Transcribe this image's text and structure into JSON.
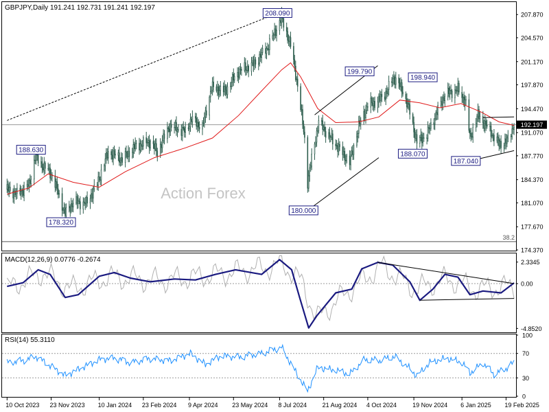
{
  "chart_data": {
    "type": "candlestick",
    "symbol_header": "GBPJPY,Daily  191.241 192.731 191.241 192.197",
    "watermark": "Action Forex",
    "current_price_label": "192.197",
    "current_price": 192.197,
    "price_axis": {
      "ylim": [
        174.37,
        209.55
      ],
      "ticks": [
        "207.870",
        "204.570",
        "201.170",
        "197.870",
        "194.470",
        "191.070",
        "187.770",
        "184.370",
        "181.070",
        "177.670",
        "174.370"
      ]
    },
    "fib_label": "38.2",
    "fib_level": 175.55,
    "price_labels": [
      {
        "text": "208.090",
        "x": "2024-07-10",
        "y": 208.09
      },
      {
        "text": "199.790",
        "x": "2024-09-30",
        "y": 199.79
      },
      {
        "text": "198.940",
        "x": "2024-12-02",
        "y": 198.94
      },
      {
        "text": "188.630",
        "x": "2023-11-07",
        "y": 188.63
      },
      {
        "text": "188.070",
        "x": "2024-11-22",
        "y": 188.07
      },
      {
        "text": "187.040",
        "x": "2025-01-14",
        "y": 187.04
      },
      {
        "text": "178.320",
        "x": "2023-12-07",
        "y": 178.32
      },
      {
        "text": "180.000",
        "x": "2024-08-05",
        "y": 180.0
      }
    ],
    "trendlines": [
      {
        "style": "dotted",
        "from": {
          "x": "2023-10-10",
          "y": 192.8
        },
        "to": {
          "x": "2024-07-10",
          "y": 208.3
        }
      },
      {
        "style": "solid",
        "from": {
          "x": "2024-08-05",
          "y": 180.0
        },
        "to": {
          "x": "2024-10-15",
          "y": 187.5
        }
      },
      {
        "style": "solid",
        "from": {
          "x": "2024-08-12",
          "y": 193.6
        },
        "to": {
          "x": "2024-10-14",
          "y": 200.6
        }
      },
      {
        "style": "solid",
        "from": {
          "x": "2025-01-14",
          "y": 187.04
        },
        "to": {
          "x": "2025-02-27",
          "y": 188.5
        }
      },
      {
        "style": "solid",
        "from": {
          "x": "2025-01-27",
          "y": 193.2
        },
        "to": {
          "x": "2025-02-27",
          "y": 193.3
        }
      }
    ],
    "price_path": [
      {
        "x": "2023-10-10",
        "y": 183.0
      },
      {
        "x": "2023-10-20",
        "y": 182.3
      },
      {
        "x": "2023-11-01",
        "y": 183.6
      },
      {
        "x": "2023-11-07",
        "y": 187.6
      },
      {
        "x": "2023-11-14",
        "y": 186.5
      },
      {
        "x": "2023-11-24",
        "y": 185.0
      },
      {
        "x": "2023-12-07",
        "y": 179.5
      },
      {
        "x": "2023-12-15",
        "y": 181.2
      },
      {
        "x": "2023-12-28",
        "y": 181.0
      },
      {
        "x": "2024-01-08",
        "y": 183.8
      },
      {
        "x": "2024-01-19",
        "y": 188.3
      },
      {
        "x": "2024-02-02",
        "y": 187.3
      },
      {
        "x": "2024-02-16",
        "y": 189.2
      },
      {
        "x": "2024-03-01",
        "y": 189.8
      },
      {
        "x": "2024-03-08",
        "y": 188.3
      },
      {
        "x": "2024-03-20",
        "y": 192.0
      },
      {
        "x": "2024-04-05",
        "y": 191.2
      },
      {
        "x": "2024-04-11",
        "y": 193.0
      },
      {
        "x": "2024-04-22",
        "y": 191.8
      },
      {
        "x": "2024-05-01",
        "y": 197.5
      },
      {
        "x": "2024-05-15",
        "y": 197.0
      },
      {
        "x": "2024-05-28",
        "y": 199.8
      },
      {
        "x": "2024-06-12",
        "y": 200.8
      },
      {
        "x": "2024-06-26",
        "y": 203.2
      },
      {
        "x": "2024-07-10",
        "y": 207.4
      },
      {
        "x": "2024-07-19",
        "y": 203.5
      },
      {
        "x": "2024-07-26",
        "y": 197.8
      },
      {
        "x": "2024-08-02",
        "y": 190.2
      },
      {
        "x": "2024-08-05",
        "y": 184.0
      },
      {
        "x": "2024-08-09",
        "y": 187.3
      },
      {
        "x": "2024-08-16",
        "y": 192.6
      },
      {
        "x": "2024-08-23",
        "y": 191.2
      },
      {
        "x": "2024-09-02",
        "y": 189.4
      },
      {
        "x": "2024-09-16",
        "y": 186.8
      },
      {
        "x": "2024-09-25",
        "y": 192.0
      },
      {
        "x": "2024-10-04",
        "y": 195.0
      },
      {
        "x": "2024-10-14",
        "y": 195.5
      },
      {
        "x": "2024-10-23",
        "y": 196.9
      },
      {
        "x": "2024-10-30",
        "y": 199.0
      },
      {
        "x": "2024-11-08",
        "y": 197.0
      },
      {
        "x": "2024-11-15",
        "y": 194.0
      },
      {
        "x": "2024-11-22",
        "y": 189.7
      },
      {
        "x": "2024-12-02",
        "y": 190.8
      },
      {
        "x": "2024-12-10",
        "y": 193.3
      },
      {
        "x": "2024-12-20",
        "y": 196.5
      },
      {
        "x": "2025-01-02",
        "y": 197.2
      },
      {
        "x": "2025-01-10",
        "y": 195.3
      },
      {
        "x": "2025-01-14",
        "y": 190.3
      },
      {
        "x": "2025-01-22",
        "y": 193.6
      },
      {
        "x": "2025-02-03",
        "y": 191.3
      },
      {
        "x": "2025-02-12",
        "y": 189.4
      },
      {
        "x": "2025-02-20",
        "y": 189.8
      },
      {
        "x": "2025-02-27",
        "y": 192.2
      }
    ],
    "ma_path": [
      {
        "x": "2023-10-10",
        "y": 182.3
      },
      {
        "x": "2023-11-01",
        "y": 183.2
      },
      {
        "x": "2023-11-20",
        "y": 185.2
      },
      {
        "x": "2023-12-15",
        "y": 184.0
      },
      {
        "x": "2024-01-10",
        "y": 183.3
      },
      {
        "x": "2024-02-05",
        "y": 185.5
      },
      {
        "x": "2024-03-05",
        "y": 187.5
      },
      {
        "x": "2024-04-05",
        "y": 188.9
      },
      {
        "x": "2024-05-02",
        "y": 190.3
      },
      {
        "x": "2024-05-28",
        "y": 193.5
      },
      {
        "x": "2024-06-20",
        "y": 197.0
      },
      {
        "x": "2024-07-10",
        "y": 200.0
      },
      {
        "x": "2024-07-19",
        "y": 201.0
      },
      {
        "x": "2024-07-29",
        "y": 199.0
      },
      {
        "x": "2024-08-15",
        "y": 194.5
      },
      {
        "x": "2024-09-02",
        "y": 192.5
      },
      {
        "x": "2024-09-25",
        "y": 192.6
      },
      {
        "x": "2024-10-15",
        "y": 193.3
      },
      {
        "x": "2024-11-05",
        "y": 195.7
      },
      {
        "x": "2024-11-25",
        "y": 195.3
      },
      {
        "x": "2024-12-15",
        "y": 194.6
      },
      {
        "x": "2025-01-05",
        "y": 195.2
      },
      {
        "x": "2025-01-25",
        "y": 194.0
      },
      {
        "x": "2025-02-12",
        "y": 192.6
      },
      {
        "x": "2025-02-27",
        "y": 192.1
      }
    ],
    "macd": {
      "header": "MACD(12,26,9) 0.0776 -0.2674",
      "ticks": [
        "2.3345",
        "0.00",
        "-4.8520"
      ],
      "ylim": [
        -5.2,
        3.2
      ],
      "zero_label": "0.00",
      "macd_path": [
        {
          "x": "2023-10-10",
          "y": -0.3
        },
        {
          "x": "2023-10-26",
          "y": 0.1
        },
        {
          "x": "2023-11-10",
          "y": 1.5
        },
        {
          "x": "2023-11-22",
          "y": 1.0
        },
        {
          "x": "2023-12-07",
          "y": -1.5
        },
        {
          "x": "2023-12-20",
          "y": -1.2
        },
        {
          "x": "2024-01-10",
          "y": 0.8
        },
        {
          "x": "2024-01-25",
          "y": 1.2
        },
        {
          "x": "2024-02-10",
          "y": 0.6
        },
        {
          "x": "2024-03-01",
          "y": 0.2
        },
        {
          "x": "2024-03-25",
          "y": 0.5
        },
        {
          "x": "2024-04-15",
          "y": 0.4
        },
        {
          "x": "2024-05-05",
          "y": 1.0
        },
        {
          "x": "2024-05-25",
          "y": 1.5
        },
        {
          "x": "2024-06-20",
          "y": 1.0
        },
        {
          "x": "2024-07-08",
          "y": 2.6
        },
        {
          "x": "2024-07-20",
          "y": 1.5
        },
        {
          "x": "2024-07-28",
          "y": -1.5
        },
        {
          "x": "2024-08-06",
          "y": -4.8
        },
        {
          "x": "2024-08-14",
          "y": -3.5
        },
        {
          "x": "2024-09-02",
          "y": -1.0
        },
        {
          "x": "2024-09-18",
          "y": -0.6
        },
        {
          "x": "2024-09-28",
          "y": 1.6
        },
        {
          "x": "2024-10-14",
          "y": 2.3
        },
        {
          "x": "2024-10-29",
          "y": 2.0
        },
        {
          "x": "2024-11-15",
          "y": 0.2
        },
        {
          "x": "2024-11-25",
          "y": -1.8
        },
        {
          "x": "2024-12-08",
          "y": -0.6
        },
        {
          "x": "2024-12-20",
          "y": 1.0
        },
        {
          "x": "2025-01-02",
          "y": 0.7
        },
        {
          "x": "2025-01-14",
          "y": -1.2
        },
        {
          "x": "2025-01-27",
          "y": -0.8
        },
        {
          "x": "2025-02-05",
          "y": -0.9
        },
        {
          "x": "2025-02-14",
          "y": -1.0
        },
        {
          "x": "2025-02-27",
          "y": 0.08
        }
      ],
      "signal_path": [
        {
          "x": "2023-10-10",
          "y": -0.5
        },
        {
          "x": "2023-11-15",
          "y": 1.2
        },
        {
          "x": "2023-12-12",
          "y": -0.6
        },
        {
          "x": "2024-01-20",
          "y": 0.7
        },
        {
          "x": "2024-03-10",
          "y": 0.3
        },
        {
          "x": "2024-05-15",
          "y": 1.1
        },
        {
          "x": "2024-07-12",
          "y": 2.0
        },
        {
          "x": "2024-07-30",
          "y": 0.2
        },
        {
          "x": "2024-08-14",
          "y": -3.8
        },
        {
          "x": "2024-09-10",
          "y": -1.2
        },
        {
          "x": "2024-10-18",
          "y": 1.9
        },
        {
          "x": "2024-11-20",
          "y": -0.6
        },
        {
          "x": "2024-12-22",
          "y": 0.5
        },
        {
          "x": "2025-01-20",
          "y": -0.6
        },
        {
          "x": "2025-02-27",
          "y": -0.27
        }
      ],
      "trendlines": [
        {
          "from": {
            "x": "2024-10-14",
            "y": 2.3
          },
          "to": {
            "x": "2025-02-27",
            "y": 0.0
          }
        },
        {
          "from": {
            "x": "2024-11-25",
            "y": -1.8
          },
          "to": {
            "x": "2025-02-27",
            "y": -1.6
          }
        }
      ]
    },
    "rsi": {
      "header": "RSI(14) 55.3110",
      "ticks": [
        "100",
        "70",
        "30",
        "0"
      ],
      "ylim": [
        0,
        100
      ],
      "levels": [
        70,
        30
      ],
      "path": [
        {
          "x": "2023-10-10",
          "y": 55
        },
        {
          "x": "2023-10-25",
          "y": 58
        },
        {
          "x": "2023-11-08",
          "y": 65
        },
        {
          "x": "2023-11-22",
          "y": 50
        },
        {
          "x": "2023-12-07",
          "y": 34
        },
        {
          "x": "2023-12-20",
          "y": 44
        },
        {
          "x": "2024-01-10",
          "y": 60
        },
        {
          "x": "2024-01-25",
          "y": 63
        },
        {
          "x": "2024-02-10",
          "y": 55
        },
        {
          "x": "2024-03-01",
          "y": 62
        },
        {
          "x": "2024-03-20",
          "y": 58
        },
        {
          "x": "2024-04-10",
          "y": 70
        },
        {
          "x": "2024-04-25",
          "y": 52
        },
        {
          "x": "2024-05-10",
          "y": 66
        },
        {
          "x": "2024-05-28",
          "y": 64
        },
        {
          "x": "2024-06-20",
          "y": 70
        },
        {
          "x": "2024-07-10",
          "y": 80
        },
        {
          "x": "2024-07-22",
          "y": 45
        },
        {
          "x": "2024-08-05",
          "y": 8
        },
        {
          "x": "2024-08-15",
          "y": 47
        },
        {
          "x": "2024-09-03",
          "y": 42
        },
        {
          "x": "2024-09-16",
          "y": 36
        },
        {
          "x": "2024-10-01",
          "y": 60
        },
        {
          "x": "2024-10-16",
          "y": 58
        },
        {
          "x": "2024-10-30",
          "y": 65
        },
        {
          "x": "2024-11-15",
          "y": 45
        },
        {
          "x": "2024-11-22",
          "y": 33
        },
        {
          "x": "2024-12-05",
          "y": 55
        },
        {
          "x": "2024-12-22",
          "y": 62
        },
        {
          "x": "2025-01-06",
          "y": 55
        },
        {
          "x": "2025-01-14",
          "y": 38
        },
        {
          "x": "2025-01-27",
          "y": 54
        },
        {
          "x": "2025-02-07",
          "y": 36
        },
        {
          "x": "2025-02-18",
          "y": 44
        },
        {
          "x": "2025-02-27",
          "y": 55
        }
      ]
    },
    "x_axis": {
      "range": [
        "2023-10-05",
        "2025-03-01"
      ],
      "ticks": [
        {
          "label": "10 Oct 2023",
          "date": "2023-10-10"
        },
        {
          "label": "23 Nov 2023",
          "date": "2023-11-23"
        },
        {
          "label": "10 Jan 2024",
          "date": "2024-01-10"
        },
        {
          "label": "23 Feb 2024",
          "date": "2024-02-23"
        },
        {
          "label": "9 Apr 2024",
          "date": "2024-04-09"
        },
        {
          "label": "23 May 2024",
          "date": "2024-05-23"
        },
        {
          "label": "8 Jul 2024",
          "date": "2024-07-08"
        },
        {
          "label": "21 Aug 2024",
          "date": "2024-08-21"
        },
        {
          "label": "4 Oct 2024",
          "date": "2024-10-04"
        },
        {
          "label": "19 Nov 2024",
          "date": "2024-11-19"
        },
        {
          "label": "6 Jan 2025",
          "date": "2025-01-06"
        },
        {
          "label": "19 Feb 2025",
          "date": "2025-02-19"
        }
      ]
    },
    "colors": {
      "candles": "#2e5e4e",
      "ma": "#e01818",
      "macd": "#1a1a80",
      "signal": "#b0b0b0",
      "rsi": "#1e90ff",
      "grid": "#9a9a9a",
      "label_border": "#1a1a80",
      "label_text": "#1a1a80"
    }
  }
}
